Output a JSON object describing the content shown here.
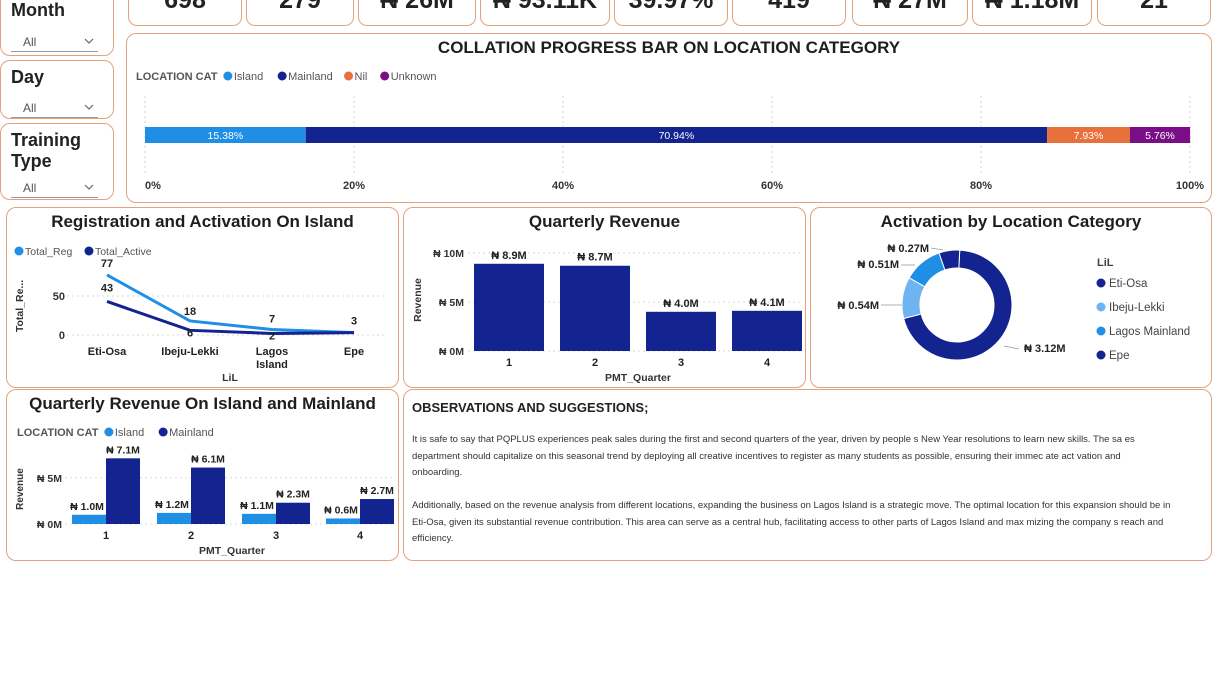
{
  "kpis": [
    "698",
    "279",
    "₦ 26M",
    "₦ 93.11K",
    "39.97%",
    "419",
    "₦ 27M",
    "₦ 1.18M",
    "21"
  ],
  "slicers": [
    {
      "title": "Month",
      "value": "All"
    },
    {
      "title": "Day",
      "value": "All"
    },
    {
      "title": "Training Type",
      "value": "All"
    }
  ],
  "colors": {
    "island": "#1f8fe6",
    "mainland": "#13238f",
    "nil": "#e8703a",
    "unknown": "#7a0e86",
    "border": "#e1a37c",
    "ibeju": "#6fb4f0",
    "lagos_mainland": "#1f8fe6"
  },
  "collation": {
    "title": "COLLATION PROGRESS BAR ON LOCATION CATEGORY",
    "legend_title": "LOCATION CAT",
    "legend": [
      "Island",
      "Mainland",
      "Nil",
      "Unknown"
    ],
    "x_ticks": [
      "0%",
      "20%",
      "40%",
      "60%",
      "80%",
      "100%"
    ]
  },
  "reg_act": {
    "title": "Registration and Activation On Island",
    "legend": [
      "Total_Reg",
      "Total_Active"
    ],
    "ylabel": "Total_Re...",
    "xlabel": "LiL",
    "y_ticks": [
      "50",
      "0"
    ]
  },
  "q_rev": {
    "title": "Quarterly Revenue",
    "ylabel": "Revenue",
    "xlabel": "PMT_Quarter",
    "y_ticks": [
      "₦ 10M",
      "₦ 5M",
      "₦ 0M"
    ]
  },
  "activation": {
    "title": "Activation by Location Category",
    "legend_title": "LiL"
  },
  "q_island": {
    "title": "Quarterly Revenue On Island and Mainland",
    "legend_title": "LOCATION CAT",
    "legend": [
      "Island",
      "Mainland"
    ],
    "ylabel": "Revenue",
    "xlabel": "PMT_Quarter",
    "y_ticks": [
      "₦ 5M",
      "₦ 0M"
    ]
  },
  "observations": {
    "title": "OBSERVATIONS AND SUGGESTIONS;",
    "p1": "It is safe to say that PQPLUS experiences peak sales during the first and second quarters of the year, driven by people s New Year resolutions to learn new skills. The sa es department should capitalize on this seasonal trend by deploying all creative incentives to register as many students as possible, ensuring their immec ate act vation and onboarding.",
    "p2": "Additionally, based on the revenue analysis from different locations, expanding the business on Lagos Island is a strategic move. The optimal location for this expansion should be in Eti-Osa, given its substantial revenue contribution. This area can serve as a central hub, facilitating access to other parts of Lagos Island and max mizing the company s reach and efficiency."
  },
  "chart_data": [
    {
      "type": "bar",
      "title": "COLLATION PROGRESS BAR ON LOCATION CATEGORY",
      "orientation": "horizontal-stacked-100",
      "series": [
        {
          "name": "Island",
          "values": [
            15.38
          ],
          "label": "15.38%"
        },
        {
          "name": "Mainland",
          "values": [
            70.94
          ],
          "label": "70.94%"
        },
        {
          "name": "Nil",
          "values": [
            7.93
          ],
          "label": "7.93%"
        },
        {
          "name": "Unknown",
          "values": [
            5.76
          ],
          "label": "5.76%"
        }
      ],
      "xlim": [
        0,
        100
      ]
    },
    {
      "type": "line",
      "title": "Registration and Activation On Island",
      "categories": [
        "Eti-Osa",
        "Ibeju-Lekki",
        "Lagos Island",
        "Epe"
      ],
      "series": [
        {
          "name": "Total_Reg",
          "values": [
            77,
            18,
            7,
            3
          ]
        },
        {
          "name": "Total_Active",
          "values": [
            43,
            6,
            2,
            3
          ]
        }
      ],
      "xlabel": "LiL",
      "ylabel": "Total_Re...",
      "ylim": [
        0,
        80
      ]
    },
    {
      "type": "bar",
      "title": "Quarterly Revenue",
      "categories": [
        "1",
        "2",
        "3",
        "4"
      ],
      "values": [
        8.9,
        8.7,
        4.0,
        4.1
      ],
      "labels": [
        "₦ 8.9M",
        "₦ 8.7M",
        "₦ 4.0M",
        "₦ 4.1M"
      ],
      "xlabel": "PMT_Quarter",
      "ylabel": "Revenue",
      "ylim": [
        0,
        10
      ]
    },
    {
      "type": "pie",
      "title": "Activation by Location Category",
      "legend_title": "LiL",
      "slices": [
        {
          "name": "Eti-Osa",
          "value": 3.12,
          "label": "₦ 3.12M"
        },
        {
          "name": "Ibeju-Lekki",
          "value": 0.54,
          "label": "₦ 0.54M"
        },
        {
          "name": "Lagos Mainland",
          "value": 0.51,
          "label": "₦ 0.51M"
        },
        {
          "name": "Epe",
          "value": 0.27,
          "label": "₦ 0.27M"
        }
      ]
    },
    {
      "type": "bar",
      "title": "Quarterly Revenue On Island and Mainland",
      "categories": [
        "1",
        "2",
        "3",
        "4"
      ],
      "series": [
        {
          "name": "Island",
          "values": [
            1.0,
            1.2,
            1.1,
            0.6
          ],
          "labels": [
            "₦ 1.0M",
            "₦ 1.2M",
            "₦ 1.1M",
            "₦ 0.6M"
          ]
        },
        {
          "name": "Mainland",
          "values": [
            7.1,
            6.1,
            2.3,
            2.7
          ],
          "labels": [
            "₦ 7.1M",
            "₦ 6.1M",
            "₦ 2.3M",
            "₦ 2.7M"
          ]
        }
      ],
      "xlabel": "PMT_Quarter",
      "ylabel": "Revenue",
      "ylim": [
        0,
        8
      ]
    }
  ]
}
